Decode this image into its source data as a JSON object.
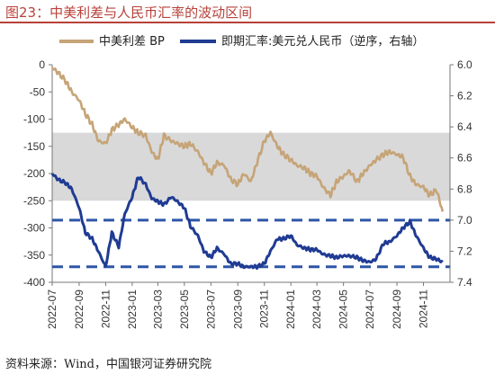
{
  "title": "图23：中美利差与人民币汇率的波动区间",
  "source": "资料来源：Wind，中国银河证券研究院",
  "chart_data": {
    "type": "line",
    "x_categories": [
      "2022-07",
      "2022-09",
      "2022-11",
      "2023-01",
      "2023-03",
      "2023-05",
      "2023-07",
      "2023-09",
      "2023-11",
      "2024-01",
      "2024-03",
      "2024-05",
      "2024-07",
      "2024-09",
      "2024-11"
    ],
    "y_left": {
      "ticks": [
        "0",
        "-50",
        "-100",
        "-150",
        "-200",
        "-250",
        "-300",
        "-350",
        "-400"
      ],
      "range": [
        -400,
        0
      ]
    },
    "y_right": {
      "ticks": [
        "6.0",
        "6.2",
        "6.4",
        "6.6",
        "6.8",
        "7.0",
        "7.2",
        "7.4"
      ],
      "range": [
        6.0,
        7.4
      ],
      "inverted": true
    },
    "shaded_band": {
      "axis": "left",
      "from": -125,
      "to": -250,
      "color": "#d9d9d9"
    },
    "reference_lines": [
      {
        "axis": "right",
        "value": 7.0,
        "color": "#2e56a6",
        "style": "dashed"
      },
      {
        "axis": "right",
        "value": 7.3,
        "color": "#2e56a6",
        "style": "dashed"
      }
    ],
    "series": [
      {
        "name": "中美利差 BP",
        "axis": "left",
        "color": "#c6a477",
        "points": [
          [
            "2022-07-01",
            -5
          ],
          [
            "2022-07-15",
            -15
          ],
          [
            "2022-08-01",
            -30
          ],
          [
            "2022-08-15",
            -50
          ],
          [
            "2022-09-01",
            -65
          ],
          [
            "2022-09-15",
            -90
          ],
          [
            "2022-10-01",
            -110
          ],
          [
            "2022-10-15",
            -140
          ],
          [
            "2022-11-01",
            -145
          ],
          [
            "2022-11-15",
            -120
          ],
          [
            "2022-12-01",
            -110
          ],
          [
            "2022-12-15",
            -100
          ],
          [
            "2023-01-01",
            -115
          ],
          [
            "2023-01-15",
            -125
          ],
          [
            "2023-02-01",
            -130
          ],
          [
            "2023-02-15",
            -160
          ],
          [
            "2023-03-01",
            -175
          ],
          [
            "2023-03-15",
            -130
          ],
          [
            "2023-04-01",
            -140
          ],
          [
            "2023-04-15",
            -145
          ],
          [
            "2023-05-01",
            -150
          ],
          [
            "2023-05-15",
            -145
          ],
          [
            "2023-06-01",
            -160
          ],
          [
            "2023-06-15",
            -180
          ],
          [
            "2023-07-01",
            -200
          ],
          [
            "2023-07-15",
            -180
          ],
          [
            "2023-08-01",
            -185
          ],
          [
            "2023-08-15",
            -210
          ],
          [
            "2023-09-01",
            -220
          ],
          [
            "2023-09-15",
            -200
          ],
          [
            "2023-10-01",
            -215
          ],
          [
            "2023-10-15",
            -180
          ],
          [
            "2023-11-01",
            -140
          ],
          [
            "2023-11-15",
            -125
          ],
          [
            "2023-12-01",
            -150
          ],
          [
            "2023-12-15",
            -165
          ],
          [
            "2024-01-01",
            -175
          ],
          [
            "2024-01-15",
            -185
          ],
          [
            "2024-02-01",
            -190
          ],
          [
            "2024-02-15",
            -200
          ],
          [
            "2024-03-01",
            -205
          ],
          [
            "2024-03-15",
            -225
          ],
          [
            "2024-04-01",
            -240
          ],
          [
            "2024-04-15",
            -215
          ],
          [
            "2024-05-01",
            -205
          ],
          [
            "2024-05-15",
            -195
          ],
          [
            "2024-06-01",
            -215
          ],
          [
            "2024-06-15",
            -200
          ],
          [
            "2024-07-01",
            -185
          ],
          [
            "2024-07-15",
            -175
          ],
          [
            "2024-08-01",
            -165
          ],
          [
            "2024-08-15",
            -160
          ],
          [
            "2024-09-01",
            -165
          ],
          [
            "2024-09-15",
            -170
          ],
          [
            "2024-10-01",
            -205
          ],
          [
            "2024-10-15",
            -220
          ],
          [
            "2024-11-01",
            -225
          ],
          [
            "2024-11-15",
            -240
          ],
          [
            "2024-12-01",
            -230
          ],
          [
            "2024-12-15",
            -270
          ]
        ]
      },
      {
        "name": "即期汇率:美元兑人民币（逆序，右轴）",
        "axis": "right",
        "color": "#1f3b93",
        "points": [
          [
            "2022-07-01",
            6.7
          ],
          [
            "2022-07-15",
            6.74
          ],
          [
            "2022-08-01",
            6.76
          ],
          [
            "2022-08-15",
            6.8
          ],
          [
            "2022-09-01",
            6.92
          ],
          [
            "2022-09-15",
            7.08
          ],
          [
            "2022-10-01",
            7.12
          ],
          [
            "2022-10-15",
            7.2
          ],
          [
            "2022-11-01",
            7.3
          ],
          [
            "2022-11-15",
            7.08
          ],
          [
            "2022-12-01",
            7.17
          ],
          [
            "2022-12-15",
            6.96
          ],
          [
            "2023-01-01",
            6.85
          ],
          [
            "2023-01-15",
            6.72
          ],
          [
            "2023-02-01",
            6.77
          ],
          [
            "2023-02-15",
            6.86
          ],
          [
            "2023-03-01",
            6.88
          ],
          [
            "2023-03-15",
            6.9
          ],
          [
            "2023-04-01",
            6.85
          ],
          [
            "2023-04-15",
            6.88
          ],
          [
            "2023-05-01",
            6.92
          ],
          [
            "2023-05-15",
            7.04
          ],
          [
            "2023-06-01",
            7.1
          ],
          [
            "2023-06-15",
            7.2
          ],
          [
            "2023-07-01",
            7.24
          ],
          [
            "2023-07-15",
            7.18
          ],
          [
            "2023-08-01",
            7.22
          ],
          [
            "2023-08-15",
            7.28
          ],
          [
            "2023-09-01",
            7.28
          ],
          [
            "2023-09-15",
            7.3
          ],
          [
            "2023-10-01",
            7.3
          ],
          [
            "2023-10-15",
            7.3
          ],
          [
            "2023-11-01",
            7.28
          ],
          [
            "2023-11-15",
            7.2
          ],
          [
            "2023-12-01",
            7.12
          ],
          [
            "2023-12-15",
            7.12
          ],
          [
            "2024-01-01",
            7.1
          ],
          [
            "2024-01-15",
            7.16
          ],
          [
            "2024-02-01",
            7.18
          ],
          [
            "2024-02-15",
            7.19
          ],
          [
            "2024-03-01",
            7.19
          ],
          [
            "2024-03-15",
            7.22
          ],
          [
            "2024-04-01",
            7.23
          ],
          [
            "2024-04-15",
            7.24
          ],
          [
            "2024-05-01",
            7.23
          ],
          [
            "2024-05-15",
            7.23
          ],
          [
            "2024-06-01",
            7.24
          ],
          [
            "2024-06-15",
            7.26
          ],
          [
            "2024-07-01",
            7.27
          ],
          [
            "2024-07-15",
            7.25
          ],
          [
            "2024-08-01",
            7.15
          ],
          [
            "2024-08-15",
            7.14
          ],
          [
            "2024-09-01",
            7.1
          ],
          [
            "2024-09-15",
            7.05
          ],
          [
            "2024-10-01",
            7.01
          ],
          [
            "2024-10-15",
            7.1
          ],
          [
            "2024-11-01",
            7.18
          ],
          [
            "2024-11-15",
            7.24
          ],
          [
            "2024-12-01",
            7.25
          ],
          [
            "2024-12-15",
            7.27
          ]
        ]
      }
    ],
    "legend": {
      "placement": "top",
      "entries": [
        "中美利差 BP",
        "即期汇率:美元兑人民币（逆序，右轴）"
      ]
    },
    "grid": false
  },
  "colors": {
    "title": "#b8413a",
    "spread": "#c6a477",
    "fx": "#1f3b93",
    "band": "#d9d9d9",
    "dash": "#2e56a6"
  }
}
